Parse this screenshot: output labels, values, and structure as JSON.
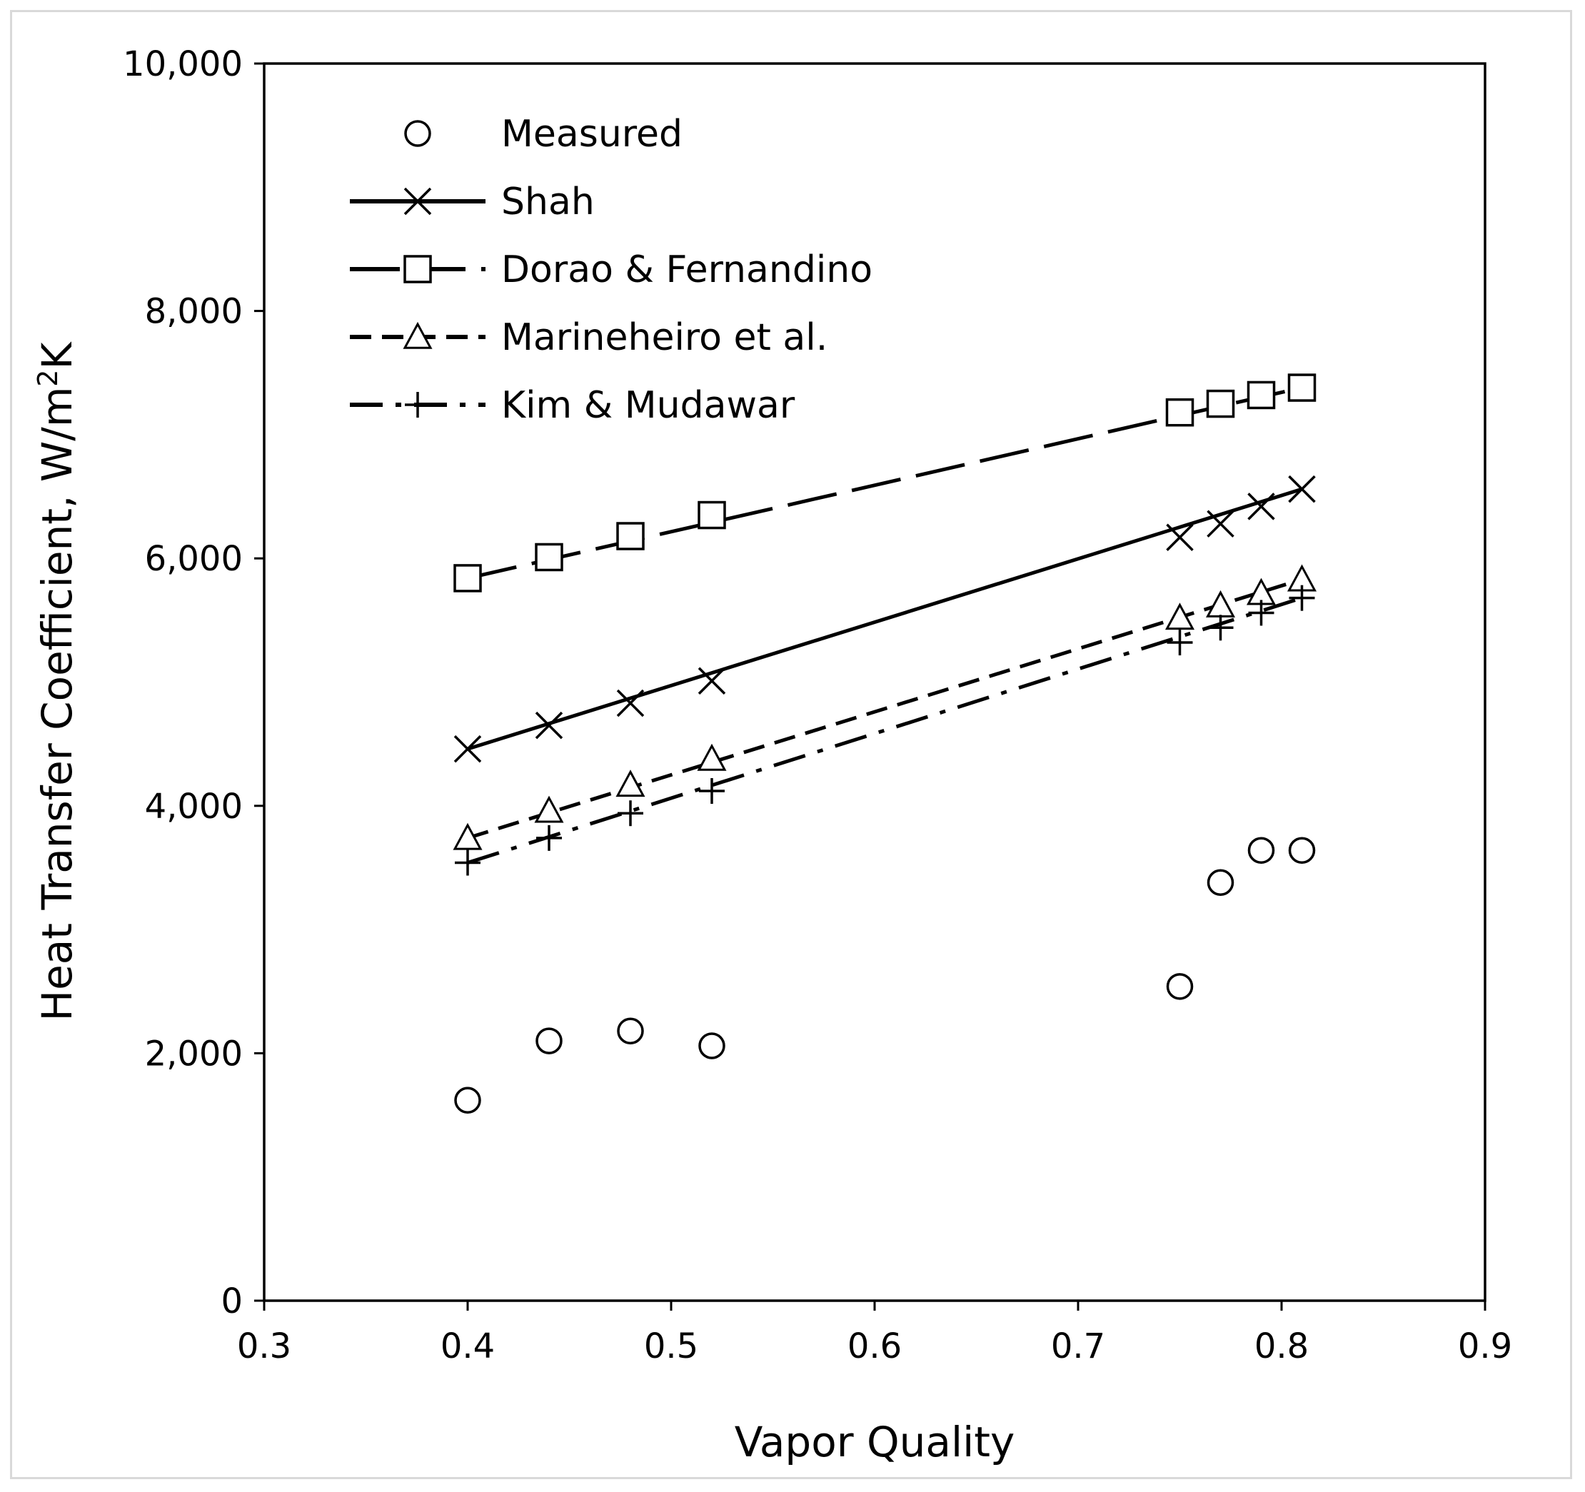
{
  "chart_data": {
    "type": "line",
    "title": "",
    "xlabel": "Vapor Quality",
    "ylabel_main": "Heat Transfer Coefficient, W/m",
    "ylabel_sup": "2",
    "ylabel_tail": "K",
    "xlim": [
      0.3,
      0.9
    ],
    "ylim": [
      0,
      10000
    ],
    "xticks": [
      0.3,
      0.4,
      0.5,
      0.6,
      0.7,
      0.8,
      0.9
    ],
    "xtick_labels": [
      "0.3",
      "0.4",
      "0.5",
      "0.6",
      "0.7",
      "0.8",
      "0.9"
    ],
    "yticks": [
      0,
      2000,
      4000,
      6000,
      8000,
      10000
    ],
    "ytick_labels": [
      "0",
      "2,000",
      "4,000",
      "6,000",
      "8,000",
      "10,000"
    ],
    "grid": false,
    "legend_position": "top-left",
    "x": [
      0.4,
      0.44,
      0.48,
      0.52,
      0.75,
      0.77,
      0.79,
      0.81
    ],
    "series": [
      {
        "name": "Measured",
        "marker": "circle",
        "line": "none",
        "values": [
          1620,
          2100,
          2180,
          2060,
          2540,
          3380,
          3640,
          3640
        ]
      },
      {
        "name": "Shah",
        "marker": "x",
        "line": "solid",
        "values": [
          4460,
          4650,
          4830,
          5010,
          6170,
          6280,
          6420,
          6560
        ]
      },
      {
        "name": "Dorao & Fernandino",
        "marker": "square",
        "line": "longdash",
        "values": [
          5840,
          6010,
          6180,
          6350,
          7180,
          7250,
          7320,
          7380
        ]
      },
      {
        "name": "Marineheiro et al.",
        "marker": "triangle",
        "line": "shortdash",
        "values": [
          3740,
          3960,
          4170,
          4380,
          5520,
          5620,
          5720,
          5830
        ]
      },
      {
        "name": "Kim & Mudawar",
        "marker": "plus",
        "line": "dashdot",
        "values": [
          3540,
          3740,
          3940,
          4120,
          5320,
          5440,
          5560,
          5680
        ]
      }
    ]
  }
}
